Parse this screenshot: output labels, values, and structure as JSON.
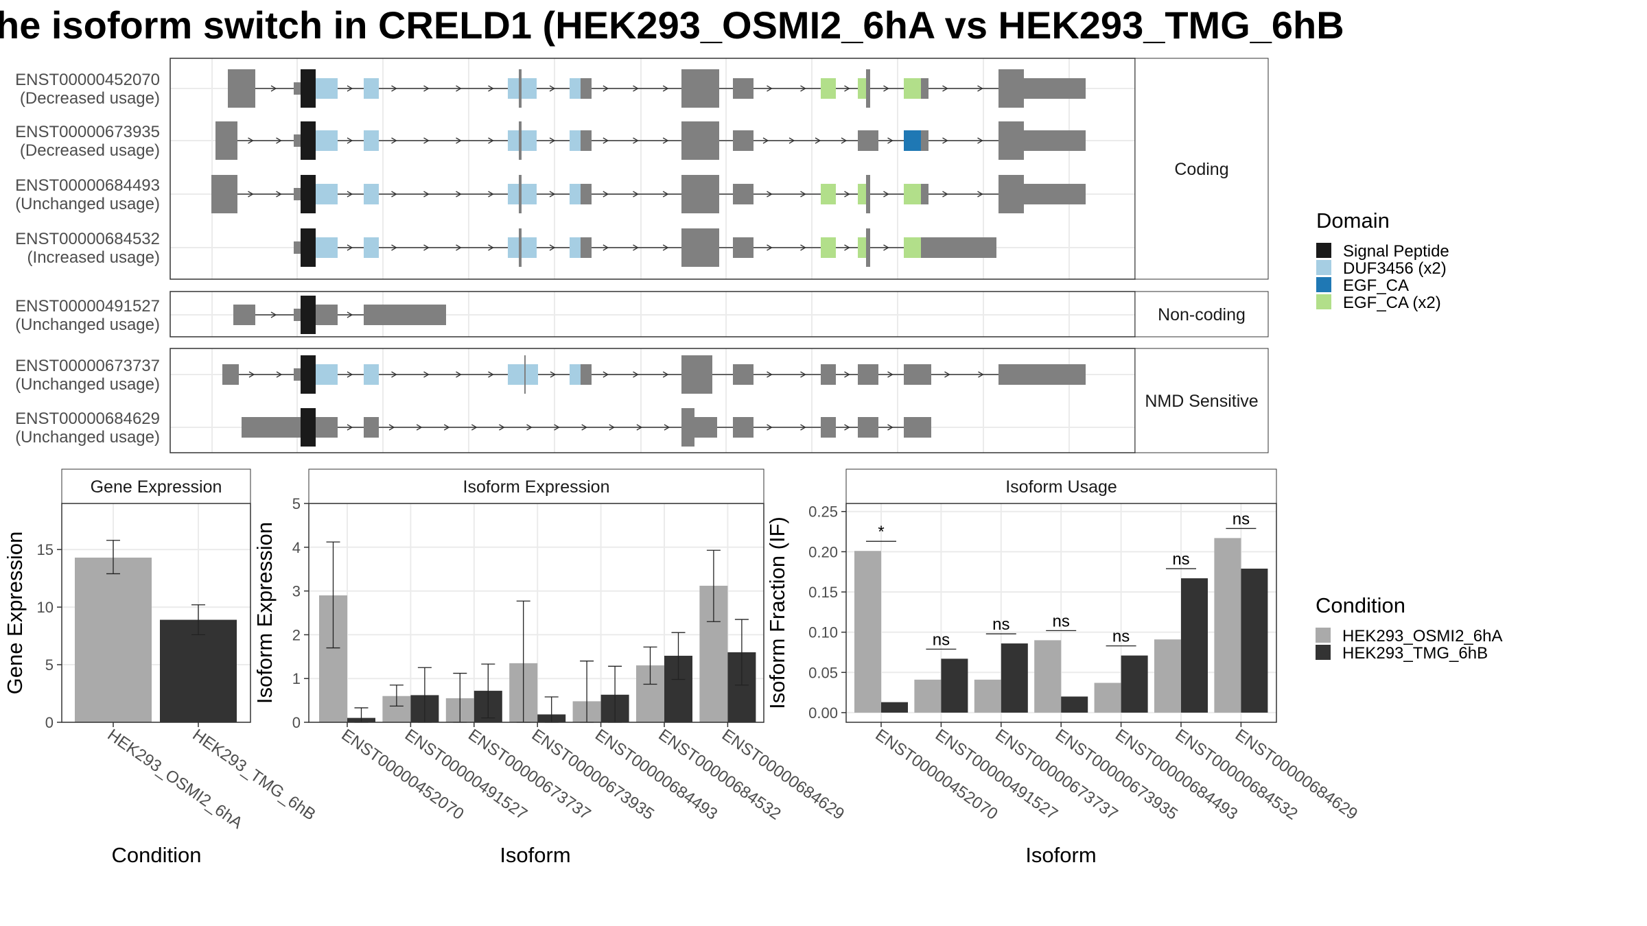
{
  "title": "he isoform switch in CRELD1 (HEK293_OSMI2_6hA vs HEK293_TMG_6hB",
  "colors": {
    "signal_peptide": "#1a1a1a",
    "duf3456": "#a6cee3",
    "egf_ca": "#1f78b4",
    "egf_ca_x2": "#b2df8a",
    "exon": "#808080",
    "cond_a": "#aaaaaa",
    "cond_b": "#333333"
  },
  "structure": {
    "groups": [
      {
        "label": "Coding",
        "transcripts": [
          {
            "id": "ENST00000452070",
            "usage": "(Decreased usage)"
          },
          {
            "id": "ENST00000673935",
            "usage": "(Decreased usage)"
          },
          {
            "id": "ENST00000684493",
            "usage": "(Unchanged usage)"
          },
          {
            "id": "ENST00000684532",
            "usage": "(Increased usage)"
          }
        ]
      },
      {
        "label": "Non-coding",
        "transcripts": [
          {
            "id": "ENST00000491527",
            "usage": "(Unchanged usage)"
          }
        ]
      },
      {
        "label": "NMD Sensitive",
        "transcripts": [
          {
            "id": "ENST00000673737",
            "usage": "(Unchanged usage)"
          },
          {
            "id": "ENST00000684629",
            "usage": "(Unchanged usage)"
          }
        ]
      }
    ]
  },
  "legend_domain": {
    "title": "Domain",
    "items": [
      {
        "label": "Signal Peptide",
        "color": "#1a1a1a"
      },
      {
        "label": "DUF3456 (x2)",
        "color": "#a6cee3"
      },
      {
        "label": "EGF_CA",
        "color": "#1f78b4"
      },
      {
        "label": "EGF_CA (x2)",
        "color": "#b2df8a"
      }
    ]
  },
  "legend_condition": {
    "title": "Condition",
    "items": [
      {
        "label": "HEK293_OSMI2_6hA",
        "color": "#aaaaaa"
      },
      {
        "label": "HEK293_TMG_6hB",
        "color": "#333333"
      }
    ]
  },
  "chart_data": [
    {
      "type": "bar",
      "title": "Gene Expression",
      "xlabel": "Condition",
      "ylabel": "Gene Expression",
      "ylim": [
        0,
        19
      ],
      "yticks": [
        0,
        5,
        10,
        15
      ],
      "categories": [
        "HEK293_OSMI2_6hA",
        "HEK293_TMG_6hB"
      ],
      "values": [
        14.3,
        8.9
      ],
      "errors": [
        [
          12.9,
          15.8
        ],
        [
          7.6,
          10.2
        ]
      ],
      "colors": [
        "#aaaaaa",
        "#333333"
      ]
    },
    {
      "type": "bar",
      "title": "Isoform Expression",
      "xlabel": "Isoform",
      "ylabel": "Isoform Expression",
      "ylim": [
        0,
        5
      ],
      "yticks": [
        0,
        1,
        2,
        3,
        4,
        5
      ],
      "categories": [
        "ENST00000452070",
        "ENST00000491527",
        "ENST00000673737",
        "ENST00000673935",
        "ENST00000684493",
        "ENST00000684532",
        "ENST00000684629"
      ],
      "series": [
        {
          "name": "HEK293_OSMI2_6hA",
          "values": [
            2.9,
            0.6,
            0.55,
            1.35,
            0.48,
            1.3,
            3.12
          ],
          "errors": [
            [
              1.7,
              4.12
            ],
            [
              0.37,
              0.85
            ],
            [
              0.0,
              1.12
            ],
            [
              0.0,
              2.77
            ],
            [
              0.0,
              1.4
            ],
            [
              0.87,
              1.72
            ],
            [
              2.3,
              3.93
            ]
          ]
        },
        {
          "name": "HEK293_TMG_6hB",
          "values": [
            0.1,
            0.62,
            0.72,
            0.18,
            0.63,
            1.52,
            1.6
          ],
          "errors": [
            [
              0.0,
              0.33
            ],
            [
              0.0,
              1.25
            ],
            [
              0.1,
              1.33
            ],
            [
              0.0,
              0.58
            ],
            [
              0.0,
              1.28
            ],
            [
              0.98,
              2.05
            ],
            [
              0.85,
              2.35
            ]
          ]
        }
      ]
    },
    {
      "type": "bar",
      "title": "Isoform Usage",
      "xlabel": "Isoform",
      "ylabel": "Isoform Fraction (IF)",
      "ylim": [
        -0.012,
        0.26
      ],
      "yticks": [
        "0.00",
        "0.05",
        "0.10",
        "0.15",
        "0.20",
        "0.25"
      ],
      "categories": [
        "ENST00000452070",
        "ENST00000491527",
        "ENST00000673737",
        "ENST00000673935",
        "ENST00000684493",
        "ENST00000684532",
        "ENST00000684629"
      ],
      "series": [
        {
          "name": "HEK293_OSMI2_6hA",
          "values": [
            0.201,
            0.041,
            0.041,
            0.09,
            0.037,
            0.091,
            0.217
          ]
        },
        {
          "name": "HEK293_TMG_6hB",
          "values": [
            0.013,
            0.067,
            0.086,
            0.02,
            0.071,
            0.167,
            0.179
          ]
        }
      ],
      "significance": [
        "*",
        "ns",
        "ns",
        "ns",
        "ns",
        "ns",
        "ns"
      ]
    }
  ]
}
